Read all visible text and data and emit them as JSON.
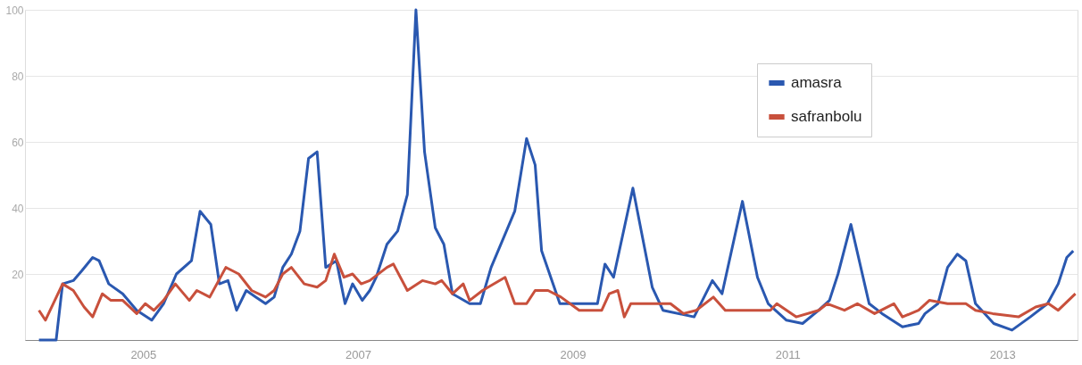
{
  "chart_data": {
    "type": "line",
    "xlim": [
      2003.9,
      2013.7
    ],
    "xticks": [
      2005,
      2007,
      2009,
      2011,
      2013
    ],
    "ylim": [
      0,
      100
    ],
    "yticks": [
      {
        "value": 0,
        "label": null
      },
      20,
      40,
      60,
      80,
      100
    ],
    "grid": "y",
    "legend": "top right",
    "marker": "none",
    "line_style": "solid",
    "series": [
      {
        "name": "amasra",
        "color": "#2a58b0",
        "x": [
          2004.03,
          2004.19,
          2004.25,
          2004.35,
          2004.43,
          2004.53,
          2004.59,
          2004.68,
          2004.81,
          2004.94,
          2005.08,
          2005.19,
          2005.31,
          2005.45,
          2005.53,
          2005.63,
          2005.71,
          2005.79,
          2005.87,
          2005.96,
          2006.05,
          2006.14,
          2006.22,
          2006.3,
          2006.38,
          2006.46,
          2006.54,
          2006.62,
          2006.7,
          2006.8,
          2006.88,
          2006.95,
          2007.04,
          2007.11,
          2007.17,
          2007.27,
          2007.37,
          2007.46,
          2007.54,
          2007.62,
          2007.72,
          2007.8,
          2007.88,
          2008.04,
          2008.14,
          2008.24,
          2008.46,
          2008.57,
          2008.65,
          2008.71,
          2008.88,
          2008.97,
          2009.15,
          2009.23,
          2009.3,
          2009.38,
          2009.56,
          2009.74,
          2009.84,
          2010.13,
          2010.3,
          2010.39,
          2010.58,
          2010.72,
          2010.82,
          2010.99,
          2011.14,
          2011.29,
          2011.39,
          2011.47,
          2011.59,
          2011.76,
          2011.88,
          2012.07,
          2012.22,
          2012.28,
          2012.4,
          2012.49,
          2012.58,
          2012.66,
          2012.75,
          2012.92,
          2013.09,
          2013.26,
          2013.42,
          2013.52,
          2013.6,
          2013.66
        ],
        "values": [
          0,
          0,
          17,
          18,
          21,
          25,
          24,
          17,
          14,
          9,
          6,
          11,
          20,
          24,
          39,
          35,
          17,
          18,
          9,
          15,
          13,
          11,
          13,
          22,
          26,
          33,
          55,
          57,
          22,
          24,
          11,
          17,
          12,
          15,
          19,
          29,
          33,
          44,
          100,
          57,
          34,
          29,
          14,
          11,
          11,
          22,
          39,
          61,
          53,
          27,
          11,
          11,
          11,
          11,
          23,
          19,
          46,
          16,
          9,
          7,
          18,
          14,
          42,
          19,
          11,
          6,
          5,
          9,
          12,
          20,
          35,
          11,
          8,
          4,
          5,
          8,
          11,
          22,
          26,
          24,
          11,
          5,
          3,
          7,
          11,
          17,
          25,
          27
        ]
      },
      {
        "name": "safranbolu",
        "color": "#c8503c",
        "x": [
          2004.03,
          2004.09,
          2004.25,
          2004.35,
          2004.45,
          2004.53,
          2004.62,
          2004.7,
          2004.81,
          2004.94,
          2005.02,
          2005.1,
          2005.19,
          2005.3,
          2005.43,
          2005.5,
          2005.62,
          2005.77,
          2005.89,
          2006.01,
          2006.14,
          2006.22,
          2006.3,
          2006.38,
          2006.5,
          2006.62,
          2006.7,
          2006.78,
          2006.87,
          2006.95,
          2007.03,
          2007.11,
          2007.27,
          2007.33,
          2007.46,
          2007.6,
          2007.72,
          2007.78,
          2007.88,
          2007.98,
          2008.04,
          2008.16,
          2008.37,
          2008.46,
          2008.57,
          2008.65,
          2008.77,
          2008.89,
          2009.06,
          2009.18,
          2009.27,
          2009.34,
          2009.42,
          2009.48,
          2009.54,
          2009.66,
          2009.79,
          2009.91,
          2010.03,
          2010.15,
          2010.31,
          2010.42,
          2010.5,
          2010.68,
          2010.84,
          2010.9,
          2011.08,
          2011.29,
          2011.37,
          2011.53,
          2011.65,
          2011.81,
          2011.99,
          2012.07,
          2012.22,
          2012.32,
          2012.49,
          2012.66,
          2012.75,
          2012.91,
          2013.15,
          2013.31,
          2013.43,
          2013.52,
          2013.68
        ],
        "values": [
          9,
          6,
          17,
          15,
          10,
          7,
          14,
          12,
          12,
          8,
          11,
          9,
          12,
          17,
          12,
          15,
          13,
          22,
          20,
          15,
          13,
          15,
          20,
          22,
          17,
          16,
          18,
          26,
          19,
          20,
          17,
          18,
          22,
          23,
          15,
          18,
          17,
          18,
          14,
          17,
          12,
          15,
          19,
          11,
          11,
          15,
          15,
          13,
          9,
          9,
          9,
          14,
          15,
          7,
          11,
          11,
          11,
          11,
          8,
          9,
          13,
          9,
          9,
          9,
          9,
          11,
          7,
          9,
          11,
          9,
          11,
          8,
          11,
          7,
          9,
          12,
          11,
          11,
          9,
          8,
          7,
          10,
          11,
          9,
          14
        ]
      }
    ]
  }
}
